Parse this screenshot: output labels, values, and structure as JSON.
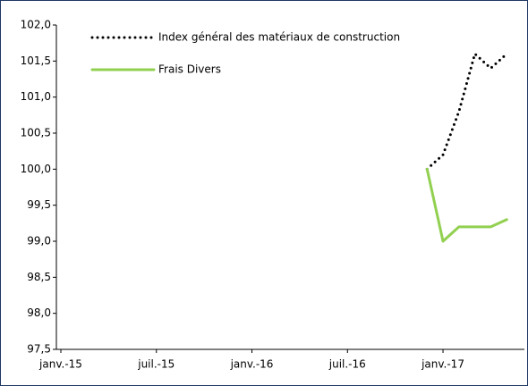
{
  "chart_data": {
    "type": "line",
    "x": [
      "2016-12",
      "2017-01",
      "2017-02",
      "2017-03",
      "2017-04",
      "2017-05"
    ],
    "series": [
      {
        "name": "Index général des matériaux de construction",
        "color": "#000000",
        "dash": "dotted",
        "values": [
          100.0,
          100.2,
          100.8,
          101.6,
          101.4,
          101.6
        ]
      },
      {
        "name": "Frais Divers",
        "color": "#92d050",
        "dash": "solid",
        "values": [
          100.0,
          99.0,
          99.2,
          99.2,
          99.2,
          99.3
        ]
      }
    ],
    "xlim": [
      "2015-01",
      "2017-06"
    ],
    "xticks": [
      {
        "value": "2015-01",
        "label": "janv.-15"
      },
      {
        "value": "2015-07",
        "label": "juil.-15"
      },
      {
        "value": "2016-01",
        "label": "janv.-16"
      },
      {
        "value": "2016-07",
        "label": "juil.-16"
      },
      {
        "value": "2017-01",
        "label": "janv.-17"
      }
    ],
    "ylim": [
      97.5,
      102.0
    ],
    "yticks": [
      {
        "value": 97.5,
        "label": "97,5"
      },
      {
        "value": 98.0,
        "label": "98,0"
      },
      {
        "value": 98.5,
        "label": "98,5"
      },
      {
        "value": 99.0,
        "label": "99,0"
      },
      {
        "value": 99.5,
        "label": "99,5"
      },
      {
        "value": 100.0,
        "label": "100,0"
      },
      {
        "value": 100.5,
        "label": "100,5"
      },
      {
        "value": 101.0,
        "label": "101,0"
      },
      {
        "value": 101.5,
        "label": "101,5"
      },
      {
        "value": 102.0,
        "label": "102,0"
      }
    ],
    "legend": "upper left"
  }
}
